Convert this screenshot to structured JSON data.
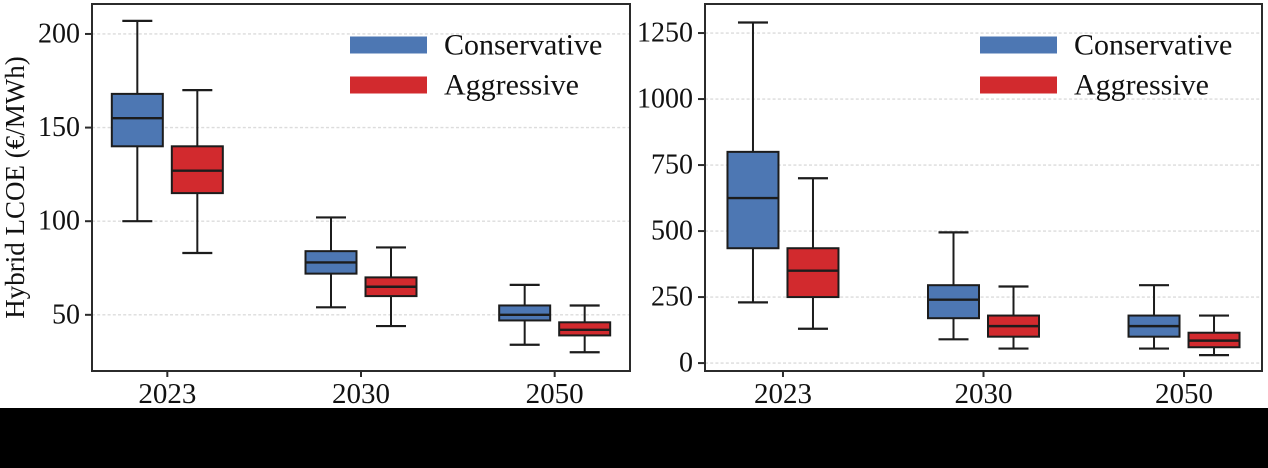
{
  "figure": {
    "background": "#ffffff",
    "bottom_bar_color": "#000000",
    "grid_color": "#dcdcdc",
    "spine_color": "#2b2b2b",
    "box_edge_color": "#1c1c1c"
  },
  "chart_data": [
    {
      "type": "boxplot",
      "title": "",
      "ylabel": "Hybrid LCOE (€/MWh)",
      "xlabel": "",
      "categories": [
        "2023",
        "2030",
        "2050"
      ],
      "yticks": [
        50,
        100,
        150,
        200
      ],
      "ylim": [
        20,
        216
      ],
      "grid": "horizontal-dashed",
      "legend_position": "top-right",
      "legend": [
        {
          "label": "Conservative",
          "color": "#4d77b3"
        },
        {
          "label": "Aggressive",
          "color": "#d22a2e"
        }
      ],
      "series": [
        {
          "name": "Conservative",
          "color": "#4d77b3",
          "boxes": [
            {
              "low": 100,
              "q1": 140,
              "median": 155,
              "q3": 168,
              "high": 207
            },
            {
              "low": 54,
              "q1": 72,
              "median": 78,
              "q3": 84,
              "high": 102
            },
            {
              "low": 34,
              "q1": 47,
              "median": 50,
              "q3": 55,
              "high": 66
            }
          ]
        },
        {
          "name": "Aggressive",
          "color": "#d22a2e",
          "boxes": [
            {
              "low": 83,
              "q1": 115,
              "median": 127,
              "q3": 140,
              "high": 170
            },
            {
              "low": 44,
              "q1": 60,
              "median": 65,
              "q3": 70,
              "high": 86
            },
            {
              "low": 30,
              "q1": 39,
              "median": 42,
              "q3": 46,
              "high": 55
            }
          ]
        }
      ]
    },
    {
      "type": "boxplot",
      "title": "",
      "ylabel": "",
      "xlabel": "",
      "categories": [
        "2023",
        "2030",
        "2050"
      ],
      "yticks": [
        0,
        250,
        500,
        750,
        1000,
        1250
      ],
      "ylim": [
        -30,
        1360
      ],
      "grid": "horizontal-dashed",
      "legend_position": "top-right",
      "legend": [
        {
          "label": "Conservative",
          "color": "#4d77b3"
        },
        {
          "label": "Aggressive",
          "color": "#d22a2e"
        }
      ],
      "series": [
        {
          "name": "Conservative",
          "color": "#4d77b3",
          "boxes": [
            {
              "low": 230,
              "q1": 435,
              "median": 625,
              "q3": 800,
              "high": 1290
            },
            {
              "low": 90,
              "q1": 170,
              "median": 240,
              "q3": 295,
              "high": 495
            },
            {
              "low": 55,
              "q1": 100,
              "median": 140,
              "q3": 180,
              "high": 295
            }
          ]
        },
        {
          "name": "Aggressive",
          "color": "#d22a2e",
          "boxes": [
            {
              "low": 130,
              "q1": 250,
              "median": 350,
              "q3": 435,
              "high": 700
            },
            {
              "low": 55,
              "q1": 100,
              "median": 140,
              "q3": 180,
              "high": 290
            },
            {
              "low": 30,
              "q1": 60,
              "median": 85,
              "q3": 115,
              "high": 180
            }
          ]
        }
      ]
    }
  ]
}
